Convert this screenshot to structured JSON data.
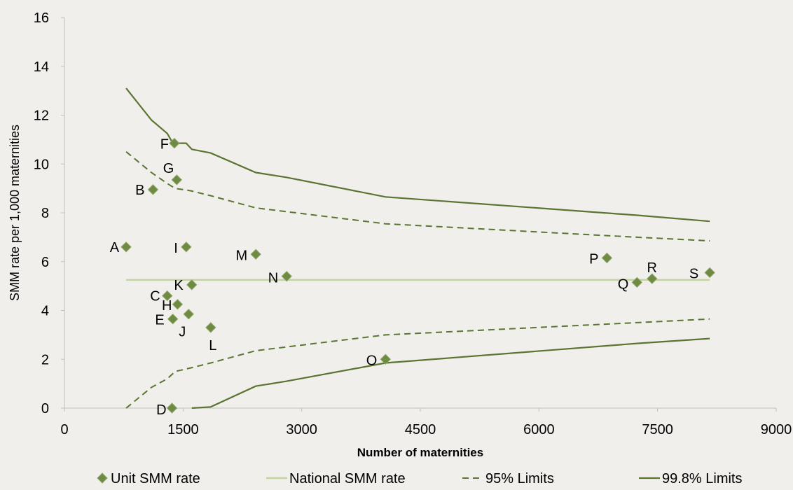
{
  "chart_data": {
    "type": "scatter",
    "title": "",
    "xlabel": "Number of maternities",
    "ylabel": "SMM rate per 1,000  maternities",
    "xlim": [
      0,
      9000
    ],
    "ylim": [
      0,
      16
    ],
    "xticks": [
      0,
      1500,
      3000,
      4500,
      6000,
      7500,
      9000
    ],
    "yticks": [
      0,
      2,
      4,
      6,
      8,
      10,
      12,
      14,
      16
    ],
    "grid": false,
    "legend_position": "bottom",
    "points": [
      {
        "label": "A",
        "x": 780,
        "y": 6.6
      },
      {
        "label": "B",
        "x": 1120,
        "y": 8.95
      },
      {
        "label": "C",
        "x": 1300,
        "y": 4.6
      },
      {
        "label": "D",
        "x": 1360,
        "y": 0
      },
      {
        "label": "E",
        "x": 1370,
        "y": 3.65
      },
      {
        "label": "F",
        "x": 1390,
        "y": 10.85
      },
      {
        "label": "G",
        "x": 1420,
        "y": 9.35
      },
      {
        "label": "H",
        "x": 1430,
        "y": 4.25
      },
      {
        "label": "I",
        "x": 1540,
        "y": 6.6
      },
      {
        "label": "J",
        "x": 1570,
        "y": 3.85
      },
      {
        "label": "K",
        "x": 1610,
        "y": 5.05
      },
      {
        "label": "L",
        "x": 1850,
        "y": 3.3
      },
      {
        "label": "M",
        "x": 2420,
        "y": 6.3
      },
      {
        "label": "N",
        "x": 2810,
        "y": 5.4
      },
      {
        "label": "O",
        "x": 4060,
        "y": 2.0
      },
      {
        "label": "P",
        "x": 6860,
        "y": 6.15
      },
      {
        "label": "Q",
        "x": 7240,
        "y": 5.15
      },
      {
        "label": "R",
        "x": 7430,
        "y": 5.3
      },
      {
        "label": "S",
        "x": 8160,
        "y": 5.55
      }
    ],
    "series": [
      {
        "name": "Unit SMM rate",
        "style": "marker"
      },
      {
        "name": "National SMM rate",
        "style": "line",
        "x": [
          780,
          8160
        ],
        "y": [
          5.25,
          5.25
        ]
      },
      {
        "name": "95% Limits",
        "style": "dashed",
        "x": [
          780,
          1100,
          1300,
          1400,
          1600,
          1850,
          2420,
          4060,
          7240,
          8160
        ],
        "y": [
          10.5,
          9.65,
          9.2,
          9.0,
          8.9,
          8.7,
          8.2,
          7.55,
          7.0,
          6.85
        ]
      },
      {
        "name": "95% Limits",
        "style": "dashed",
        "legend": false,
        "x": [
          780,
          1100,
          1300,
          1400,
          1600,
          1850,
          2420,
          4060,
          7240,
          8160
        ],
        "y": [
          0,
          0.85,
          1.2,
          1.5,
          1.65,
          1.85,
          2.35,
          3.0,
          3.5,
          3.65
        ]
      },
      {
        "name": "99.8% Limits",
        "style": "solid",
        "x": [
          780,
          1100,
          1300,
          1370,
          1430,
          1540,
          1610,
          1850,
          2420,
          2810,
          4060,
          7240,
          8160
        ],
        "y": [
          13.1,
          11.8,
          11.25,
          10.85,
          10.85,
          10.85,
          10.6,
          10.45,
          9.65,
          9.45,
          8.65,
          7.9,
          7.65
        ]
      },
      {
        "name": "99.8% Limits",
        "style": "solid",
        "legend": false,
        "x": [
          1610,
          1850,
          2420,
          2810,
          4060,
          7240,
          8160
        ],
        "y": [
          0,
          0.05,
          0.9,
          1.1,
          1.85,
          2.65,
          2.85
        ]
      }
    ]
  },
  "colors": {
    "background": "#f1efeb",
    "marker": "#6e8a43",
    "national": "#c3d3a1",
    "limits": "#5a7432",
    "axis": "#bfbfbf"
  }
}
